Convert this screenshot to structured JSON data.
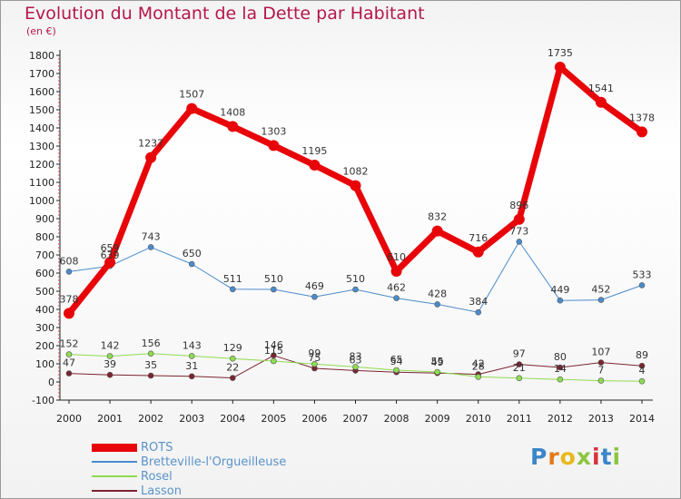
{
  "chart_data": {
    "type": "line",
    "title": "Evolution du Montant de la Dette par Habitant",
    "subtitle": "(en €)",
    "xlabel": "",
    "ylabel": "",
    "ylim": [
      -100,
      1800
    ],
    "yticks": [
      -100,
      0,
      100,
      200,
      300,
      400,
      500,
      600,
      700,
      800,
      900,
      1000,
      1100,
      1200,
      1300,
      1400,
      1500,
      1600,
      1700,
      1800
    ],
    "categories": [
      "2000",
      "2001",
      "2002",
      "2003",
      "2004",
      "2005",
      "2006",
      "2007",
      "2008",
      "2009",
      "2010",
      "2011",
      "2012",
      "2013",
      "2014"
    ],
    "series": [
      {
        "name": "ROTS",
        "color": "#e8050a",
        "values": [
          378,
          659,
          1237,
          1507,
          1408,
          1303,
          1195,
          1082,
          610,
          832,
          716,
          896,
          1735,
          1541,
          1378
        ]
      },
      {
        "name": "Bretteville-l'Orgueilleuse",
        "color": "#4a8ccc",
        "values": [
          608,
          639,
          743,
          650,
          511,
          510,
          469,
          510,
          462,
          428,
          384,
          773,
          449,
          452,
          533
        ]
      },
      {
        "name": "Rosel",
        "color": "#8edc52",
        "values": [
          152,
          142,
          156,
          143,
          129,
          115,
          99,
          83,
          65,
          55,
          28,
          21,
          14,
          7,
          4
        ]
      },
      {
        "name": "Lasson",
        "color": "#7a2530",
        "values": [
          47,
          39,
          35,
          31,
          22,
          146,
          75,
          63,
          54,
          49,
          42,
          97,
          80,
          107,
          89
        ]
      }
    ],
    "legend_position": "bottom-left"
  },
  "logo": {
    "text": "Proxiti"
  }
}
